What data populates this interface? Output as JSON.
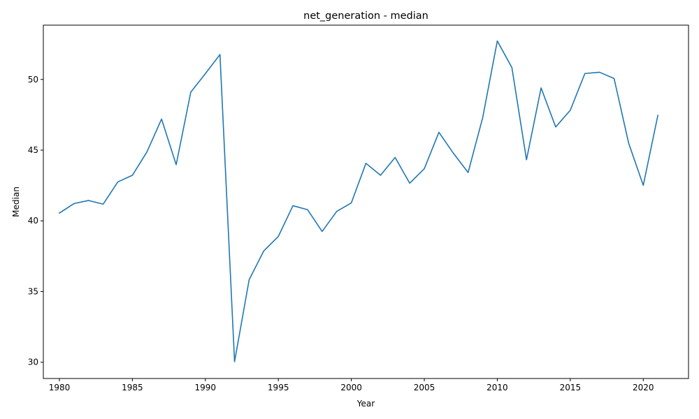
{
  "chart_data": {
    "type": "line",
    "title": "net_generation - median",
    "xlabel": "Year",
    "ylabel": "Median",
    "xlim": [
      1978.9,
      2023.1
    ],
    "ylim": [
      28.85,
      53.84
    ],
    "xticks": [
      1980,
      1985,
      1990,
      1995,
      2000,
      2005,
      2010,
      2015,
      2020
    ],
    "yticks": [
      30,
      35,
      40,
      45,
      50
    ],
    "grid": false,
    "series": [
      {
        "color": "#1f77b4",
        "x": [
          1980,
          1981,
          1982,
          1983,
          1984,
          1985,
          1986,
          1987,
          1988,
          1989,
          1990,
          1991,
          1992,
          1993,
          1994,
          1995,
          1996,
          1997,
          1998,
          1999,
          2000,
          2001,
          2002,
          2003,
          2004,
          2005,
          2006,
          2007,
          2008,
          2009,
          2010,
          2011,
          2012,
          2013,
          2014,
          2015,
          2016,
          2017,
          2018,
          2019,
          2020,
          2021
        ],
        "values": [
          40.55,
          41.22,
          41.44,
          41.18,
          42.75,
          43.22,
          44.88,
          47.2,
          43.97,
          49.1,
          50.41,
          51.76,
          30.04,
          35.84,
          37.87,
          38.9,
          41.07,
          40.79,
          39.25,
          40.67,
          41.27,
          44.07,
          43.22,
          44.48,
          42.66,
          43.69,
          46.26,
          44.77,
          43.42,
          47.3,
          52.72,
          50.84,
          44.32,
          49.4,
          46.64,
          47.82,
          50.42,
          50.51,
          50.07,
          45.49,
          42.51,
          47.46
        ]
      }
    ]
  }
}
